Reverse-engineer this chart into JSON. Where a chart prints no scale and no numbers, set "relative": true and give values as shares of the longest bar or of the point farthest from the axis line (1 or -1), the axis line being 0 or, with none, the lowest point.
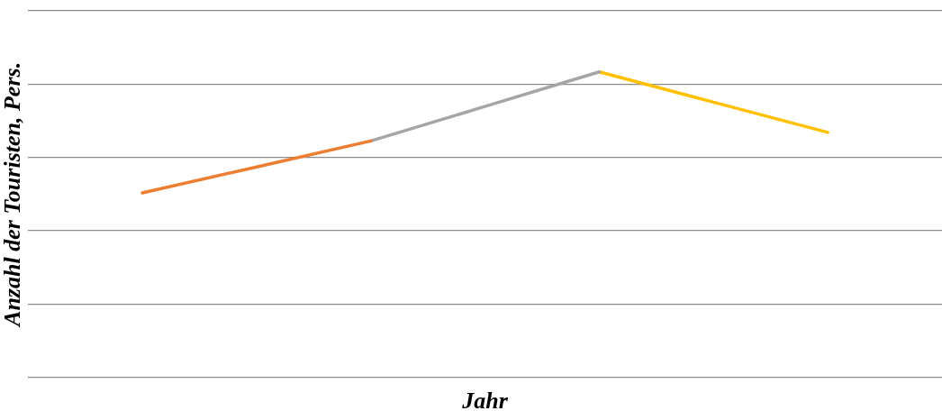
{
  "chart_data": {
    "type": "line",
    "xlabel": "Jahr",
    "ylabel": "Anzahl der Touristen, Pers.",
    "relative": true,
    "categories": [
      null,
      null,
      null,
      null
    ],
    "grid": "y",
    "legend": false,
    "marker": "none",
    "line_style": "solid",
    "series": [
      {
        "color": "#ed7d31",
        "values": [
          0.604,
          0.774,
          null,
          null
        ]
      },
      {
        "color": "#a5a5a5",
        "values": [
          null,
          0.774,
          1,
          null
        ]
      },
      {
        "color": "#ffc000",
        "values": [
          null,
          null,
          1,
          0.802
        ]
      }
    ]
  }
}
